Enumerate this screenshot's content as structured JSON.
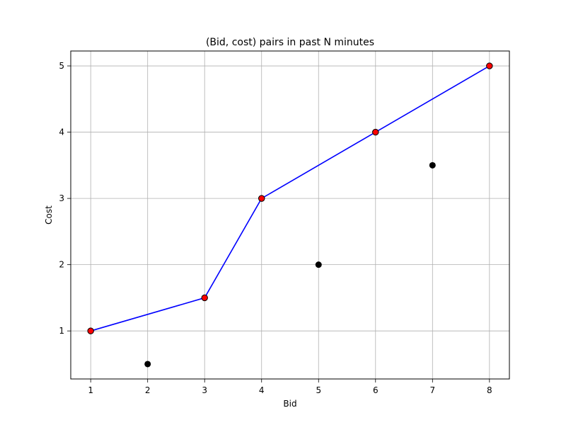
{
  "chart_data": {
    "type": "scatter",
    "title": "(Bid, cost) pairs in past N minutes",
    "xlabel": "Bid",
    "ylabel": "Cost",
    "xlim": [
      0.65,
      8.35
    ],
    "ylim": [
      0.275,
      5.225
    ],
    "xticks": [
      1,
      2,
      3,
      4,
      5,
      6,
      7,
      8
    ],
    "yticks": [
      1,
      2,
      3,
      4,
      5
    ],
    "grid": true,
    "series": [
      {
        "kind": "points",
        "color": "#000000",
        "points": [
          {
            "x": 1,
            "y": 1
          },
          {
            "x": 2,
            "y": 0.5
          },
          {
            "x": 3,
            "y": 1.5
          },
          {
            "x": 4,
            "y": 3
          },
          {
            "x": 5,
            "y": 2
          },
          {
            "x": 6,
            "y": 4
          },
          {
            "x": 7,
            "y": 3.5
          },
          {
            "x": 8,
            "y": 5
          }
        ]
      },
      {
        "kind": "line",
        "color": "#0000ff",
        "marker_color": "#ff0000",
        "points": [
          {
            "x": 1,
            "y": 1
          },
          {
            "x": 3,
            "y": 1.5
          },
          {
            "x": 4,
            "y": 3
          },
          {
            "x": 6,
            "y": 4
          },
          {
            "x": 8,
            "y": 5
          }
        ]
      }
    ]
  }
}
